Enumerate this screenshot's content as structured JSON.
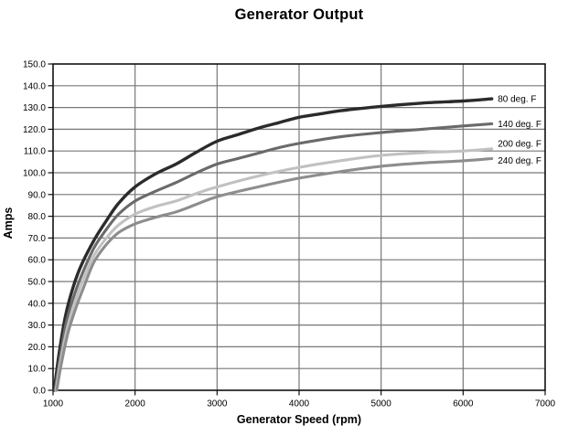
{
  "chart_data": {
    "type": "line",
    "title": "Generator Output",
    "xlabel": "Generator Speed (rpm)",
    "ylabel": "Amps",
    "xlim": [
      1000,
      7000
    ],
    "ylim": [
      0,
      150
    ],
    "x_ticks": [
      1000,
      2000,
      3000,
      4000,
      5000,
      6000,
      7000
    ],
    "y_ticks": [
      0,
      10,
      20,
      30,
      40,
      50,
      60,
      70,
      80,
      90,
      100,
      110,
      120,
      130,
      140,
      150
    ],
    "y_tick_decimals": 1,
    "grid": "both",
    "legend": "inline-end-labels",
    "axis_color": "#111111",
    "grid_color": "#777777",
    "label_color": "#000000",
    "series": [
      {
        "name": "80 deg. F",
        "color": "#2b2b2b",
        "label_dy": 0,
        "points": [
          [
            1015,
            0
          ],
          [
            1070,
            16
          ],
          [
            1150,
            34
          ],
          [
            1250,
            48
          ],
          [
            1350,
            58
          ],
          [
            1500,
            69
          ],
          [
            1650,
            78
          ],
          [
            1800,
            86
          ],
          [
            2000,
            93.5
          ],
          [
            2250,
            99.5
          ],
          [
            2500,
            104
          ],
          [
            2750,
            109.5
          ],
          [
            3000,
            114.5
          ],
          [
            3250,
            117.5
          ],
          [
            3500,
            120.5
          ],
          [
            3750,
            123
          ],
          [
            4000,
            125.5
          ],
          [
            4250,
            127
          ],
          [
            4500,
            128.5
          ],
          [
            5000,
            130.5
          ],
          [
            5500,
            132
          ],
          [
            6000,
            133
          ],
          [
            6350,
            134
          ]
        ]
      },
      {
        "name": "140 deg. F",
        "color": "#6a6a6a",
        "label_dy": 0,
        "points": [
          [
            1025,
            0
          ],
          [
            1080,
            14
          ],
          [
            1160,
            31
          ],
          [
            1260,
            44
          ],
          [
            1360,
            54
          ],
          [
            1500,
            65.5
          ],
          [
            1650,
            74
          ],
          [
            1800,
            81
          ],
          [
            2000,
            87
          ],
          [
            2250,
            91.5
          ],
          [
            2500,
            95.5
          ],
          [
            2750,
            100
          ],
          [
            3000,
            104
          ],
          [
            3250,
            106.5
          ],
          [
            3500,
            109
          ],
          [
            3750,
            111.5
          ],
          [
            4000,
            113.5
          ],
          [
            4500,
            116.5
          ],
          [
            5000,
            118.5
          ],
          [
            5500,
            120
          ],
          [
            6000,
            121.5
          ],
          [
            6350,
            122.5
          ]
        ]
      },
      {
        "name": "200 deg. F",
        "color": "#c1c1c1",
        "label_dy": -6,
        "points": [
          [
            1035,
            0
          ],
          [
            1090,
            13
          ],
          [
            1170,
            28
          ],
          [
            1270,
            41
          ],
          [
            1370,
            51
          ],
          [
            1500,
            62
          ],
          [
            1650,
            70
          ],
          [
            1800,
            76
          ],
          [
            2000,
            81
          ],
          [
            2250,
            84.5
          ],
          [
            2500,
            87
          ],
          [
            2750,
            90.5
          ],
          [
            3000,
            93.5
          ],
          [
            3500,
            98.5
          ],
          [
            4000,
            102.5
          ],
          [
            4500,
            105.5
          ],
          [
            5000,
            108
          ],
          [
            5500,
            109.2
          ],
          [
            6000,
            110
          ],
          [
            6350,
            111
          ]
        ]
      },
      {
        "name": "240 deg. F",
        "color": "#8d8d8d",
        "label_dy": 2,
        "points": [
          [
            1045,
            0
          ],
          [
            1100,
            12
          ],
          [
            1180,
            26
          ],
          [
            1280,
            38
          ],
          [
            1380,
            48
          ],
          [
            1500,
            59
          ],
          [
            1650,
            67
          ],
          [
            1800,
            72.5
          ],
          [
            2000,
            76.5
          ],
          [
            2250,
            79.5
          ],
          [
            2500,
            82
          ],
          [
            2750,
            85.5
          ],
          [
            3000,
            89
          ],
          [
            3500,
            93.5
          ],
          [
            4000,
            97.5
          ],
          [
            4500,
            100.5
          ],
          [
            5000,
            103
          ],
          [
            5500,
            104.5
          ],
          [
            6000,
            105.5
          ],
          [
            6350,
            106.5
          ]
        ]
      }
    ]
  }
}
